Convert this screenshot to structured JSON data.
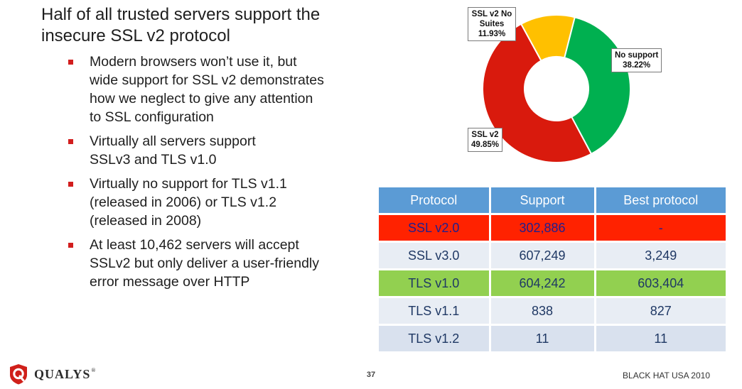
{
  "slide": {
    "title_lines": [
      "Half of all trusted servers support the",
      "insecure SSL v2 protocol"
    ],
    "bullets": [
      "Modern browsers won’t use it, but\nwide support for SSL v2 demonstrates\nhow we neglect to give any attention\nto SSL configuration",
      "Virtually all servers support\nSSLv3 and TLS v1.0",
      "Virtually no support for TLS v1.1\n(released in 2006) or TLS v1.2\n(released in 2008)",
      "At least 10,462 servers will accept\nSSLv2 but only deliver a user-friendly\nerror message over HTTP"
    ],
    "bullet_color": "#d21e1e"
  },
  "chart_data": {
    "type": "pie",
    "donut": true,
    "slices": [
      {
        "label": "No support",
        "value": 38.22,
        "value_label": "38.22%",
        "color": "#00b050"
      },
      {
        "label": "SSL v2",
        "value": 49.85,
        "value_label": "49.85%",
        "color": "#d91a0d"
      },
      {
        "label": "SSL v2 No Suites",
        "value": 11.93,
        "value_label": "11.93%",
        "color": "#ffc000"
      }
    ]
  },
  "table": {
    "headers": [
      "Protocol",
      "Support",
      "Best protocol"
    ],
    "rows": [
      {
        "protocol": "SSL v2.0",
        "support": "302,886",
        "best": "-",
        "bg": "#ff2200",
        "color": "#1f1f8f"
      },
      {
        "protocol": "SSL v3.0",
        "support": "607,249",
        "best": "3,249",
        "bg": "#e8edf4",
        "color": "#1f3864"
      },
      {
        "protocol": "TLS v1.0",
        "support": "604,242",
        "best": "603,404",
        "bg": "#92d050",
        "color": "#1f3864"
      },
      {
        "protocol": "TLS v1.1",
        "support": "838",
        "best": "827",
        "bg": "#e8edf4",
        "color": "#1f3864"
      },
      {
        "protocol": "TLS v1.2",
        "support": "11",
        "best": "11",
        "bg": "#d9e1ee",
        "color": "#1f3864"
      }
    ],
    "header_bg": "#5b9bd5"
  },
  "footer": {
    "logo_text": "QUALYS",
    "logo_reg": "®",
    "page_number": "37",
    "event": "BLACK HAT USA 2010"
  }
}
